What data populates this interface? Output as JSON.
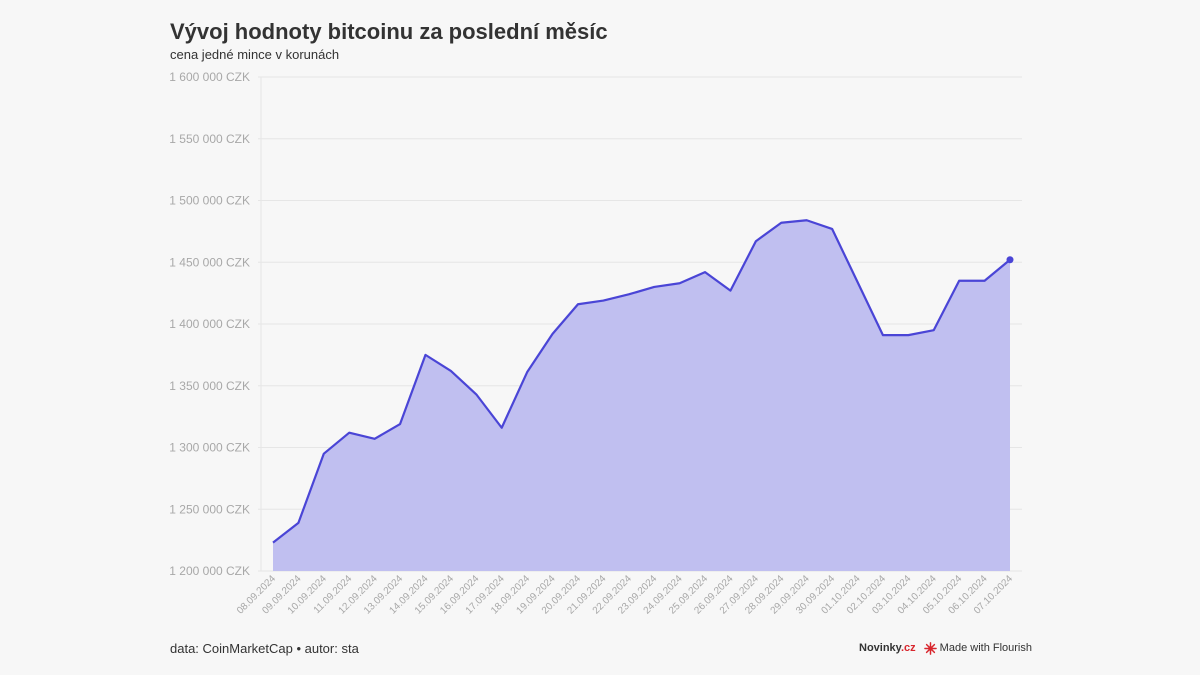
{
  "header": {
    "title": "Vývoj hodnoty bitcoinu za poslední měsíc",
    "subtitle": "cena jedné mince v korunách"
  },
  "footer": {
    "source": "data: CoinMarketCap • autor: sta",
    "brand_main": "Novinky",
    "brand_suffix": ".cz",
    "flourish": "Made with Flourish"
  },
  "colors": {
    "line": "#4a45d6",
    "area": "#c0bff0",
    "grid": "#e6e6e6",
    "tick_text": "#a8a8a8",
    "brand_red": "#d8262d"
  },
  "chart_data": {
    "type": "area",
    "title": "Vývoj hodnoty bitcoinu za poslední měsíc",
    "subtitle": "cena jedné mince v korunách",
    "xlabel": "",
    "ylabel": "",
    "ylim": [
      1200000,
      1600000
    ],
    "y_ticks": [
      1200000,
      1250000,
      1300000,
      1350000,
      1400000,
      1450000,
      1500000,
      1550000,
      1600000
    ],
    "y_tick_labels": [
      "1 200 000 CZK",
      "1 250 000 CZK",
      "1 300 000 CZK",
      "1 350 000 CZK",
      "1 400 000 CZK",
      "1 450 000 CZK",
      "1 500 000 CZK",
      "1 550 000 CZK",
      "1 600 000 CZK"
    ],
    "grid": true,
    "x": [
      "08.09.2024",
      "09.09.2024",
      "10.09.2024",
      "11.09.2024",
      "12.09.2024",
      "13.09.2024",
      "14.09.2024",
      "15.09.2024",
      "16.09.2024",
      "17.09.2024",
      "18.09.2024",
      "19.09.2024",
      "20.09.2024",
      "21.09.2024",
      "22.09.2024",
      "23.09.2024",
      "24.09.2024",
      "25.09.2024",
      "26.09.2024",
      "27.09.2024",
      "28.09.2024",
      "29.09.2024",
      "30.09.2024",
      "01.10.2024",
      "02.10.2024",
      "03.10.2024",
      "04.10.2024",
      "05.10.2024",
      "06.10.2024",
      "07.10.2024"
    ],
    "values": [
      1223000,
      1239000,
      1295000,
      1312000,
      1307000,
      1319000,
      1375000,
      1362000,
      1343000,
      1316000,
      1361000,
      1392000,
      1416000,
      1419000,
      1424000,
      1430000,
      1433000,
      1442000,
      1427000,
      1467000,
      1482000,
      1484000,
      1477000,
      1434000,
      1391000,
      1391000,
      1395000,
      1435000,
      1435000,
      1452000
    ]
  }
}
